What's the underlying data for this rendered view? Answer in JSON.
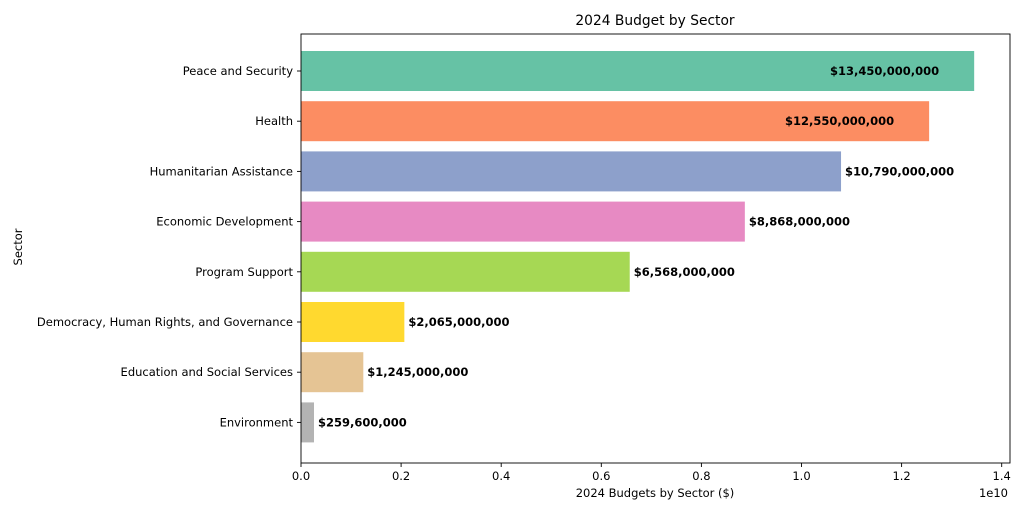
{
  "chart_data": {
    "type": "bar",
    "orientation": "horizontal",
    "title": "2024 Budget by Sector",
    "xlabel": "2024 Budgets by Sector ($)",
    "ylabel": "Sector",
    "x_scale_note": "1e10",
    "xlim": [
      0,
      14100000000.0
    ],
    "x_ticks": [
      0,
      2000000000.0,
      4000000000.0,
      6000000000.0,
      8000000000.0,
      10000000000.0,
      12000000000.0,
      14000000000.0
    ],
    "x_tick_labels": [
      "0.0",
      "0.2",
      "0.4",
      "0.6",
      "0.8",
      "1.0",
      "1.2",
      "1.4"
    ],
    "grid": false,
    "categories": [
      "Peace and Security",
      "Health",
      "Humanitarian Assistance",
      "Economic Development",
      "Program Support",
      "Democracy, Human Rights, and Governance",
      "Education and Social Services",
      "Environment"
    ],
    "values": [
      13450000000,
      12550000000,
      10790000000,
      8868000000,
      6568000000,
      2065000000,
      1245000000,
      259600000
    ],
    "value_labels": [
      "$13,450,000,000",
      "$12,550,000,000",
      "$10,790,000,000",
      "$8,868,000,000",
      "$6,568,000,000",
      "$2,065,000,000",
      "$1,245,000,000",
      "$259,600,000"
    ],
    "colors": [
      "#66c2a5",
      "#fc8d62",
      "#8da0cb",
      "#e78ac3",
      "#a6d854",
      "#ffd92f",
      "#e5c494",
      "#b3b3b3"
    ]
  }
}
